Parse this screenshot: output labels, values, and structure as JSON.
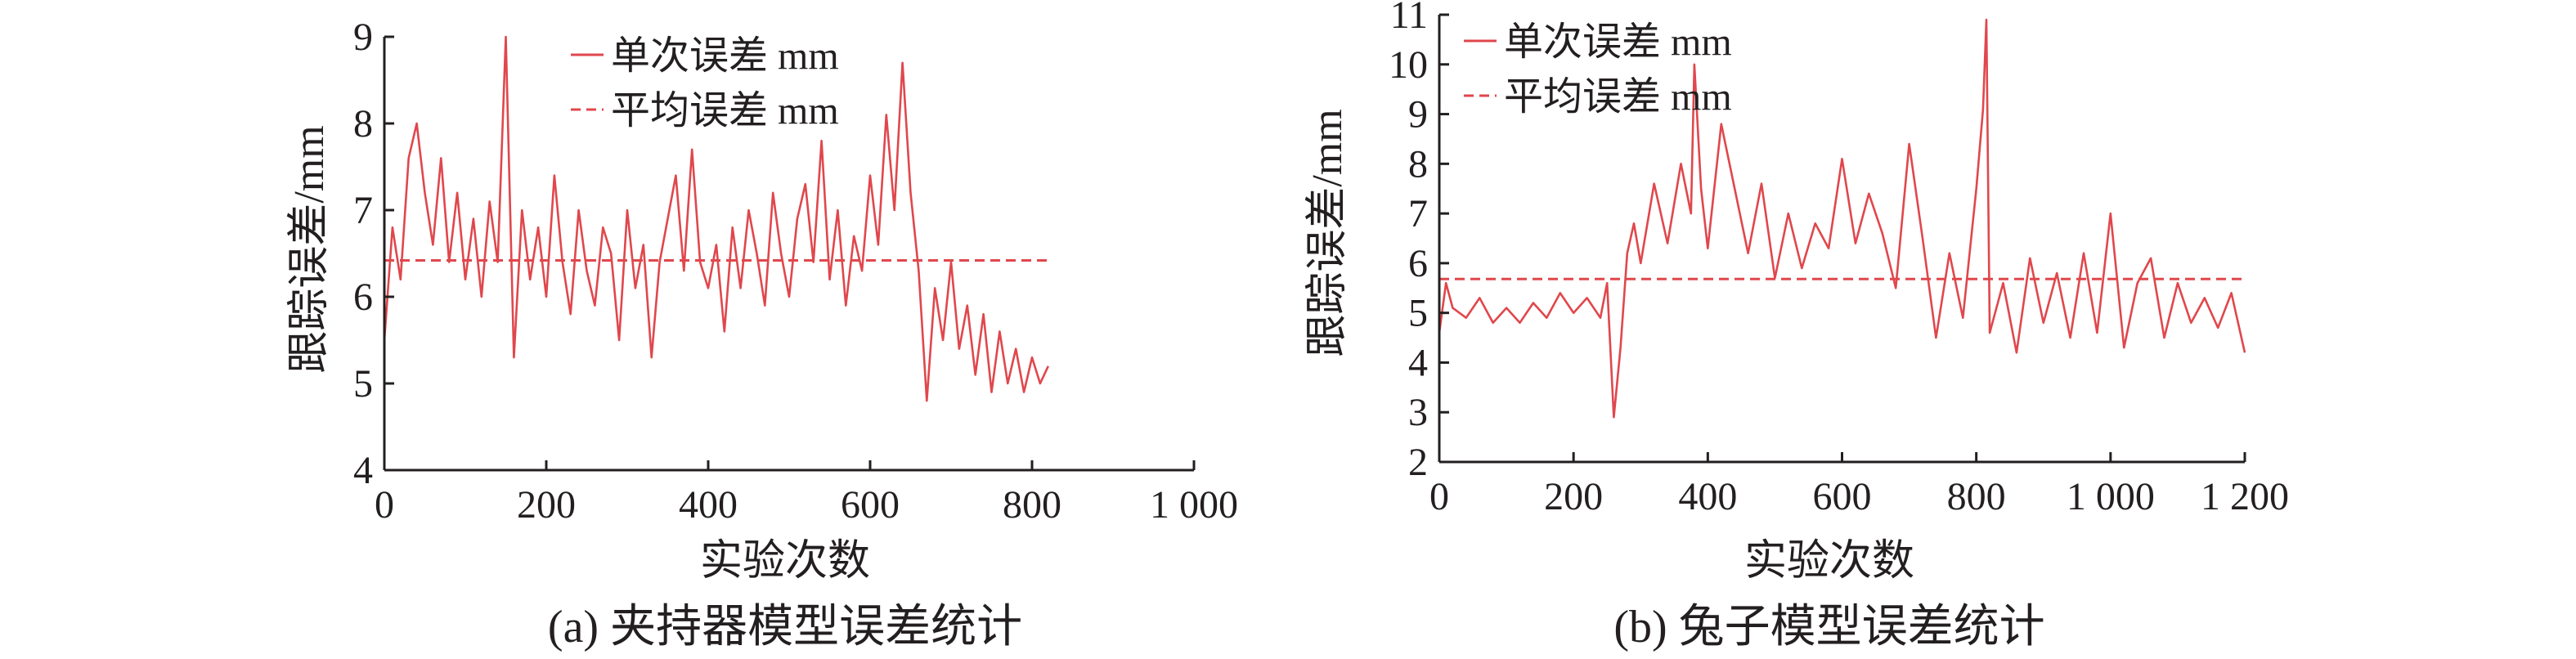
{
  "chart_data": [
    {
      "type": "line",
      "caption": "(a) 夹持器模型误差统计",
      "xlabel": "实验次数",
      "ylabel": "跟踪误差/mm",
      "xlim": [
        0,
        1000
      ],
      "ylim": [
        4,
        9
      ],
      "x_ticks": [
        0,
        200,
        400,
        600,
        800,
        1000
      ],
      "x_tick_labels": [
        "0",
        "200",
        "400",
        "600",
        "800",
        "1 000"
      ],
      "y_ticks": [
        4,
        5,
        6,
        7,
        8,
        9
      ],
      "y_tick_labels": [
        "4",
        "5",
        "6",
        "7",
        "8",
        "9"
      ],
      "legend": [
        "单次误差 mm",
        "平均误差 mm"
      ],
      "legend_position": "top-right",
      "grid": false,
      "color": "#e0474c",
      "series": [
        {
          "name": "单次误差 mm",
          "style": "solid",
          "x": [
            0,
            10,
            20,
            30,
            40,
            50,
            60,
            70,
            80,
            90,
            100,
            110,
            120,
            130,
            140,
            150,
            160,
            170,
            180,
            190,
            200,
            210,
            220,
            230,
            240,
            250,
            260,
            270,
            280,
            290,
            300,
            310,
            320,
            330,
            340,
            350,
            360,
            370,
            380,
            390,
            400,
            410,
            420,
            430,
            440,
            450,
            460,
            470,
            480,
            490,
            500,
            510,
            520,
            530,
            540,
            550,
            560,
            570,
            580,
            590,
            600,
            610,
            620,
            630,
            640,
            650,
            660,
            670,
            680,
            690,
            700,
            710,
            720,
            730,
            740,
            750,
            760,
            770,
            780,
            790,
            800,
            810,
            820
          ],
          "y": [
            5.5,
            6.8,
            6.2,
            7.6,
            8.0,
            7.2,
            6.6,
            7.6,
            6.4,
            7.2,
            6.2,
            6.9,
            6.0,
            7.1,
            6.4,
            9.0,
            5.3,
            7.0,
            6.2,
            6.8,
            6.0,
            7.4,
            6.4,
            5.8,
            7.0,
            6.3,
            5.9,
            6.8,
            6.5,
            5.5,
            7.0,
            6.1,
            6.6,
            5.3,
            6.4,
            6.9,
            7.4,
            6.3,
            7.7,
            6.4,
            6.1,
            6.6,
            5.6,
            6.8,
            6.1,
            7.0,
            6.5,
            5.9,
            7.2,
            6.5,
            6.0,
            6.9,
            7.3,
            6.4,
            7.8,
            6.2,
            7.0,
            5.9,
            6.7,
            6.3,
            7.4,
            6.6,
            8.1,
            7.0,
            8.7,
            7.2,
            6.3,
            4.8,
            6.1,
            5.5,
            6.4,
            5.4,
            5.9,
            5.1,
            5.8,
            4.9,
            5.6,
            5.0,
            5.4,
            4.9,
            5.3,
            5.0,
            5.2
          ]
        },
        {
          "name": "平均误差 mm",
          "style": "dashed",
          "x": [
            0,
            820
          ],
          "y": [
            6.42,
            6.42
          ]
        }
      ]
    },
    {
      "type": "line",
      "caption": "(b) 兔子模型误差统计",
      "xlabel": "实验次数",
      "ylabel": "跟踪误差/mm",
      "xlim": [
        0,
        1200
      ],
      "ylim": [
        2,
        11
      ],
      "x_ticks": [
        0,
        200,
        400,
        600,
        800,
        1000,
        1200
      ],
      "x_tick_labels": [
        "0",
        "200",
        "400",
        "600",
        "800",
        "1 000",
        "1 200"
      ],
      "y_ticks": [
        2,
        3,
        4,
        5,
        6,
        7,
        8,
        9,
        10,
        11
      ],
      "y_tick_labels": [
        "2",
        "3",
        "4",
        "5",
        "6",
        "7",
        "8",
        "9",
        "10",
        "11"
      ],
      "legend": [
        "单次误差 mm",
        "平均误差 mm"
      ],
      "legend_position": "top-left",
      "grid": false,
      "color": "#e0474c",
      "series": [
        {
          "name": "单次误差 mm",
          "style": "solid",
          "x": [
            0,
            10,
            20,
            40,
            60,
            80,
            100,
            120,
            140,
            160,
            180,
            200,
            220,
            240,
            250,
            260,
            270,
            280,
            290,
            300,
            320,
            340,
            360,
            375,
            380,
            390,
            400,
            420,
            440,
            460,
            480,
            500,
            520,
            540,
            560,
            580,
            600,
            620,
            640,
            660,
            680,
            700,
            720,
            740,
            760,
            780,
            800,
            810,
            815,
            820,
            840,
            860,
            880,
            900,
            920,
            940,
            960,
            980,
            1000,
            1020,
            1040,
            1060,
            1080,
            1100,
            1120,
            1140,
            1160,
            1180,
            1200
          ],
          "y": [
            4.6,
            5.6,
            5.1,
            4.9,
            5.3,
            4.8,
            5.1,
            4.8,
            5.2,
            4.9,
            5.4,
            5.0,
            5.3,
            4.9,
            5.6,
            2.9,
            4.3,
            6.2,
            6.8,
            6.0,
            7.6,
            6.4,
            8.0,
            7.0,
            10.0,
            7.5,
            6.3,
            8.8,
            7.5,
            6.2,
            7.6,
            5.7,
            7.0,
            5.9,
            6.8,
            6.3,
            8.1,
            6.4,
            7.4,
            6.6,
            5.5,
            8.4,
            6.5,
            4.5,
            6.2,
            4.9,
            7.5,
            9.1,
            10.9,
            4.6,
            5.6,
            4.2,
            6.1,
            4.8,
            5.8,
            4.5,
            6.2,
            4.6,
            7.0,
            4.3,
            5.6,
            6.1,
            4.5,
            5.6,
            4.8,
            5.3,
            4.7,
            5.4,
            4.2
          ]
        },
        {
          "name": "平均误差 mm",
          "style": "dashed",
          "x": [
            0,
            1200
          ],
          "y": [
            5.68,
            5.68
          ]
        }
      ]
    }
  ]
}
